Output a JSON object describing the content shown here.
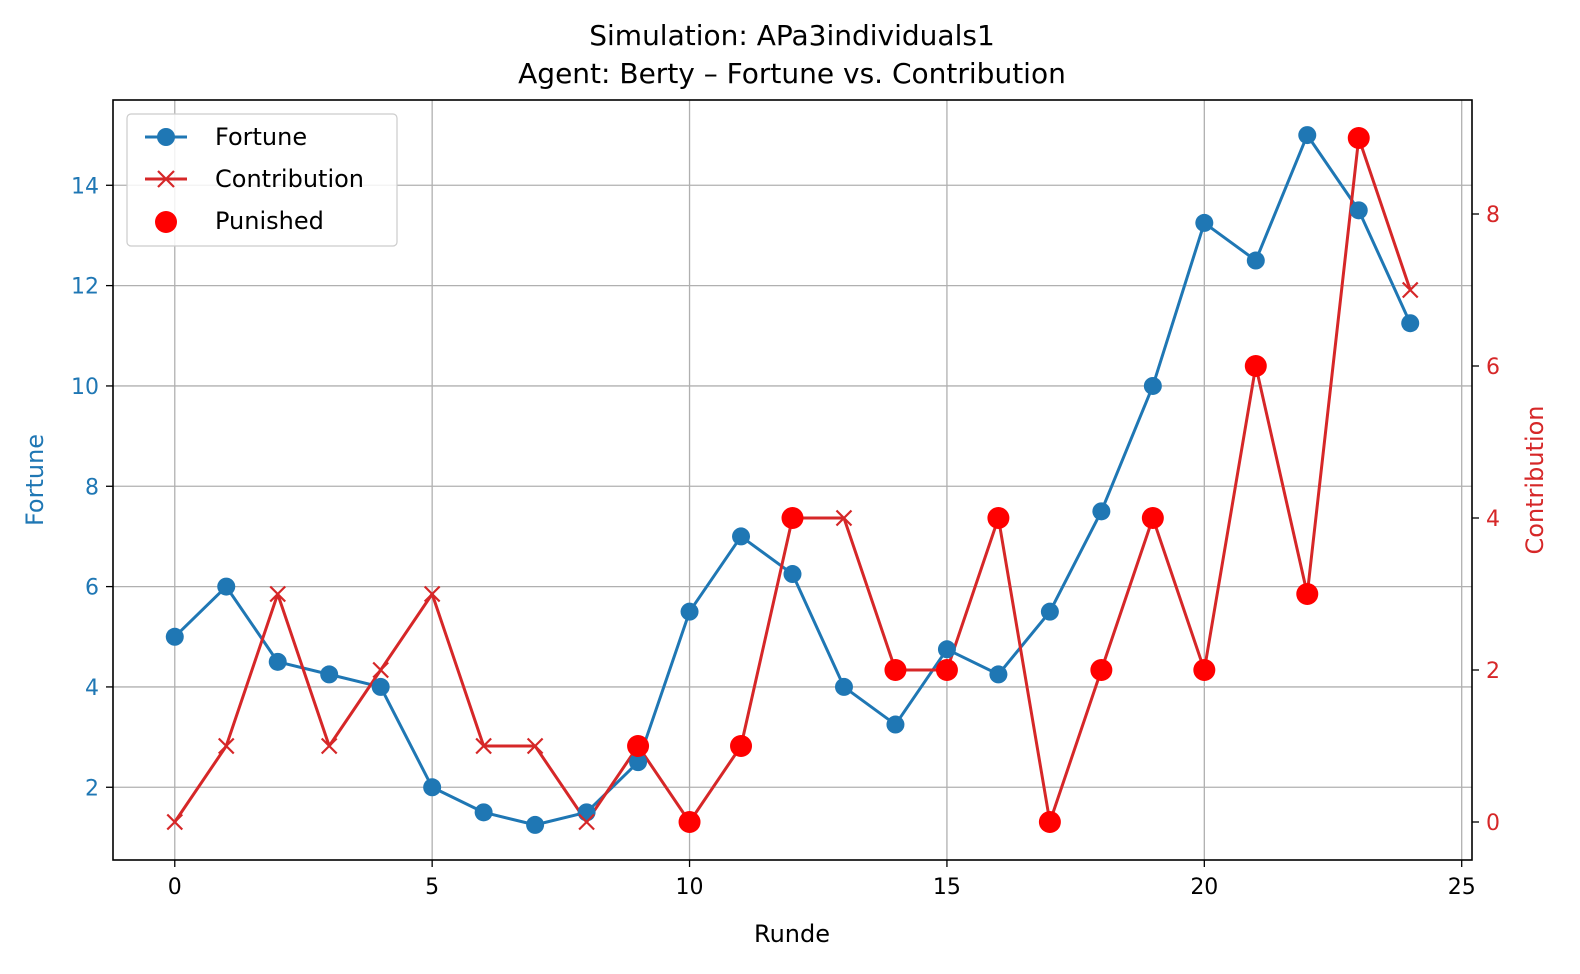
{
  "chart_data": {
    "type": "line",
    "title": "Simulation: APa3individuals1",
    "subtitle": "Agent: Berty – Fortune vs. Contribution",
    "xlabel": "Runde",
    "ylabel_left": "Fortune",
    "ylabel_right": "Contribution",
    "xlim": [
      -1.2,
      25.2
    ],
    "ylim_left": [
      0.55,
      15.7
    ],
    "ylim_right": [
      -0.5,
      9.5
    ],
    "x_ticks": [
      0,
      5,
      10,
      15,
      20,
      25
    ],
    "y_ticks_left": [
      2,
      4,
      6,
      8,
      10,
      12,
      14
    ],
    "y_ticks_right": [
      0,
      2,
      4,
      6,
      8
    ],
    "grid": true,
    "legend_position": "top-left",
    "colors": {
      "fortune": "#1f77b4",
      "contribution": "#d62728",
      "punished": "#ff0000",
      "left_axis_text": "#1f77b4",
      "right_axis_text": "#d62728"
    },
    "x": [
      0,
      1,
      2,
      3,
      4,
      5,
      6,
      7,
      8,
      9,
      10,
      11,
      12,
      13,
      14,
      15,
      16,
      17,
      18,
      19,
      20,
      21,
      22,
      23,
      24
    ],
    "series": [
      {
        "name": "Fortune",
        "axis": "left",
        "values": [
          5,
          6,
          4.5,
          4.25,
          4,
          2,
          1.5,
          1.25,
          1.5,
          2.5,
          5.5,
          7,
          6.25,
          4,
          3.25,
          4.75,
          4.25,
          5.5,
          7.5,
          10,
          13.25,
          12.5,
          15,
          13.5,
          11.25
        ]
      },
      {
        "name": "Contribution",
        "axis": "right",
        "values": [
          0,
          1,
          3,
          1,
          2,
          3,
          1,
          1,
          0,
          1,
          0,
          1,
          4,
          4,
          2,
          2,
          4,
          0,
          2,
          4,
          2,
          6,
          3,
          9,
          7
        ]
      }
    ],
    "punished": {
      "name": "Punished",
      "axis": "right",
      "x": [
        9,
        10,
        11,
        12,
        14,
        15,
        16,
        17,
        18,
        19,
        20,
        21,
        22,
        23
      ],
      "values": [
        1,
        0,
        1,
        4,
        2,
        2,
        4,
        0,
        2,
        4,
        2,
        6,
        3,
        9
      ]
    }
  }
}
